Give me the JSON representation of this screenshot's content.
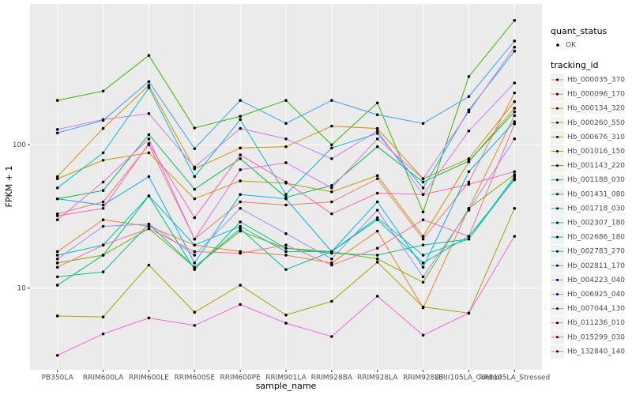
{
  "chart_data": {
    "type": "line",
    "xlabel": "sample_name",
    "ylabel": "FPKM + 1",
    "log_y": true,
    "grid": true,
    "ylim": [
      2.7,
      960
    ],
    "yticks": [
      10,
      100
    ],
    "shape_legend": {
      "title": "quant_status",
      "labels": [
        "OK"
      ]
    },
    "legend_title": "tracking_id",
    "categories": [
      "PB350LA",
      "RRIM600LA",
      "RRIM600LE",
      "RRIM600SE",
      "RRIM600PE",
      "RRIM901LA",
      "RRIM928BA",
      "RRIM928LA",
      "RRIM928LE",
      "RRII105LA_Control",
      "RRII105LA_Stressed"
    ],
    "series": [
      {
        "name": "Hb_000035_370",
        "color": "#F8766D",
        "values": [
          33,
          40,
          100,
          22,
          40,
          38,
          40,
          58,
          22,
          55,
          230
        ]
      },
      {
        "name": "Hb_000096_170",
        "color": "#EA8331",
        "values": [
          18,
          30,
          27,
          20,
          18,
          17,
          15,
          25,
          7.3,
          36,
          160
        ]
      },
      {
        "name": "Hb_000134_320",
        "color": "#D89000",
        "values": [
          60,
          130,
          260,
          68,
          95,
          97,
          135,
          130,
          58,
          80,
          200
        ]
      },
      {
        "name": "Hb_000260_550",
        "color": "#C09B00",
        "values": [
          58,
          78,
          88,
          42,
          56,
          54,
          47,
          61,
          23,
          76,
          180
        ]
      },
      {
        "name": "Hb_000676_310",
        "color": "#A3A500",
        "values": [
          6.4,
          6.3,
          14.5,
          6.8,
          10.5,
          6.5,
          8.1,
          15.2,
          7.4,
          6.7,
          36
        ]
      },
      {
        "name": "Hb_001016_150",
        "color": "#7CAE00",
        "values": [
          15,
          17,
          26,
          14,
          25,
          19,
          18,
          16,
          11,
          36,
          62
        ]
      },
      {
        "name": "Hb_001143_220",
        "color": "#39B600",
        "values": [
          204,
          237,
          420,
          131,
          158,
          204,
          100,
          196,
          34,
          299,
          737
        ]
      },
      {
        "name": "Hb_001188_030",
        "color": "#00BB4E",
        "values": [
          42,
          48,
          118,
          49,
          80,
          43,
          52,
          97,
          55,
          77,
          170
        ]
      },
      {
        "name": "Hb_001431_080",
        "color": "#00BF7D",
        "values": [
          10.5,
          17,
          44,
          13.5,
          29,
          19,
          17.5,
          17,
          20,
          22,
          60
        ]
      },
      {
        "name": "Hb_001718_030",
        "color": "#00C1A3",
        "values": [
          12,
          13,
          28,
          14,
          26,
          13.5,
          18,
          30,
          15,
          23,
          57
        ]
      },
      {
        "name": "Hb_002307_180",
        "color": "#00BFC4",
        "values": [
          17,
          20,
          44,
          20,
          27,
          18,
          18,
          31,
          17,
          22,
          58
        ]
      },
      {
        "name": "Hb_002686_180",
        "color": "#00BAE0",
        "values": [
          50,
          88,
          250,
          60,
          150,
          45,
          95,
          120,
          50,
          175,
          450
        ]
      },
      {
        "name": "Hb_002783_270",
        "color": "#00B0F6",
        "values": [
          42,
          38,
          60,
          15,
          45,
          42,
          18,
          40,
          14,
          65,
          145
        ]
      },
      {
        "name": "Hb_002811_170",
        "color": "#35A2FF",
        "values": [
          121,
          148,
          276,
          94,
          204,
          141,
          204,
          162,
          141,
          217,
          530
        ]
      },
      {
        "name": "Hb_004223_040",
        "color": "#9590FF",
        "values": [
          16,
          27,
          28,
          17,
          36,
          24,
          16,
          35,
          12,
          35,
          110
        ]
      },
      {
        "name": "Hb_006925_040",
        "color": "#C77CFF",
        "values": [
          128,
          150,
          165,
          70,
          130,
          110,
          80,
          125,
          45,
          125,
          270
        ]
      },
      {
        "name": "Hb_007044_130",
        "color": "#E76BF3",
        "values": [
          30,
          55,
          110,
          22,
          67,
          75,
          50,
          110,
          58,
          170,
          480
        ]
      },
      {
        "name": "Hb_011236_010",
        "color": "#FA62DB",
        "values": [
          3.4,
          4.8,
          6.2,
          5.5,
          7.7,
          5.7,
          4.6,
          8.8,
          4.7,
          6.7,
          23
        ]
      },
      {
        "name": "Hb_015299_030",
        "color": "#FF62BC",
        "values": [
          32,
          36,
          102,
          31,
          85,
          55,
          33,
          46,
          45,
          53,
          65
        ]
      },
      {
        "name": "Hb_132840_140",
        "color": "#FF6C91",
        "values": [
          14,
          20,
          26,
          18,
          17.5,
          20,
          14.5,
          19,
          30,
          23,
          140
        ]
      }
    ]
  }
}
